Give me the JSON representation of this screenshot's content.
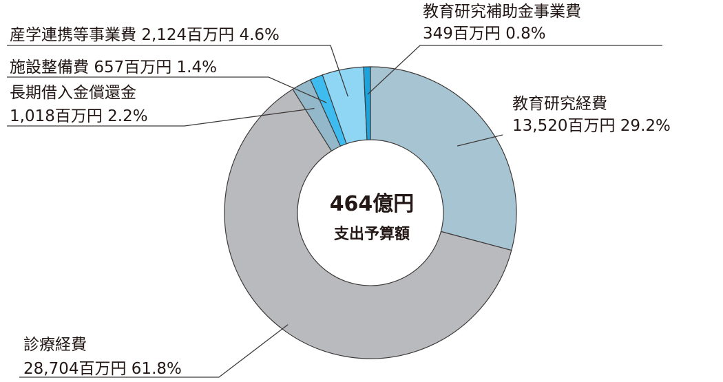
{
  "chart_data": {
    "type": "pie",
    "donut": true,
    "center": {
      "total": "464億円",
      "caption": "支出予算額"
    },
    "unit": "百万円",
    "slices": [
      {
        "name": "教育研究経費",
        "value": 13520,
        "value_label": "13,520百万円",
        "percent_label": "29.2%",
        "color": "#a7c4d2"
      },
      {
        "name": "診療経費",
        "value": 28704,
        "value_label": "28,704百万円",
        "percent_label": "61.8%",
        "color": "#b9babe"
      },
      {
        "name": "長期借入金償還金",
        "value": 1018,
        "value_label": "1,018百万円",
        "percent_label": "2.2%",
        "color": "#93b8ca"
      },
      {
        "name": "施設整備費",
        "value": 657,
        "value_label": "657百万円",
        "percent_label": "1.4%",
        "color": "#3fbcef"
      },
      {
        "name": "産学連携等事業費",
        "value": 2124,
        "value_label": "2,124百万円",
        "percent_label": "4.6%",
        "color": "#8fd6f5"
      },
      {
        "name": "教育研究補助金事業費",
        "value": 349,
        "value_label": "349百万円",
        "percent_label": "0.8%",
        "color": "#1aa3dc"
      }
    ]
  }
}
